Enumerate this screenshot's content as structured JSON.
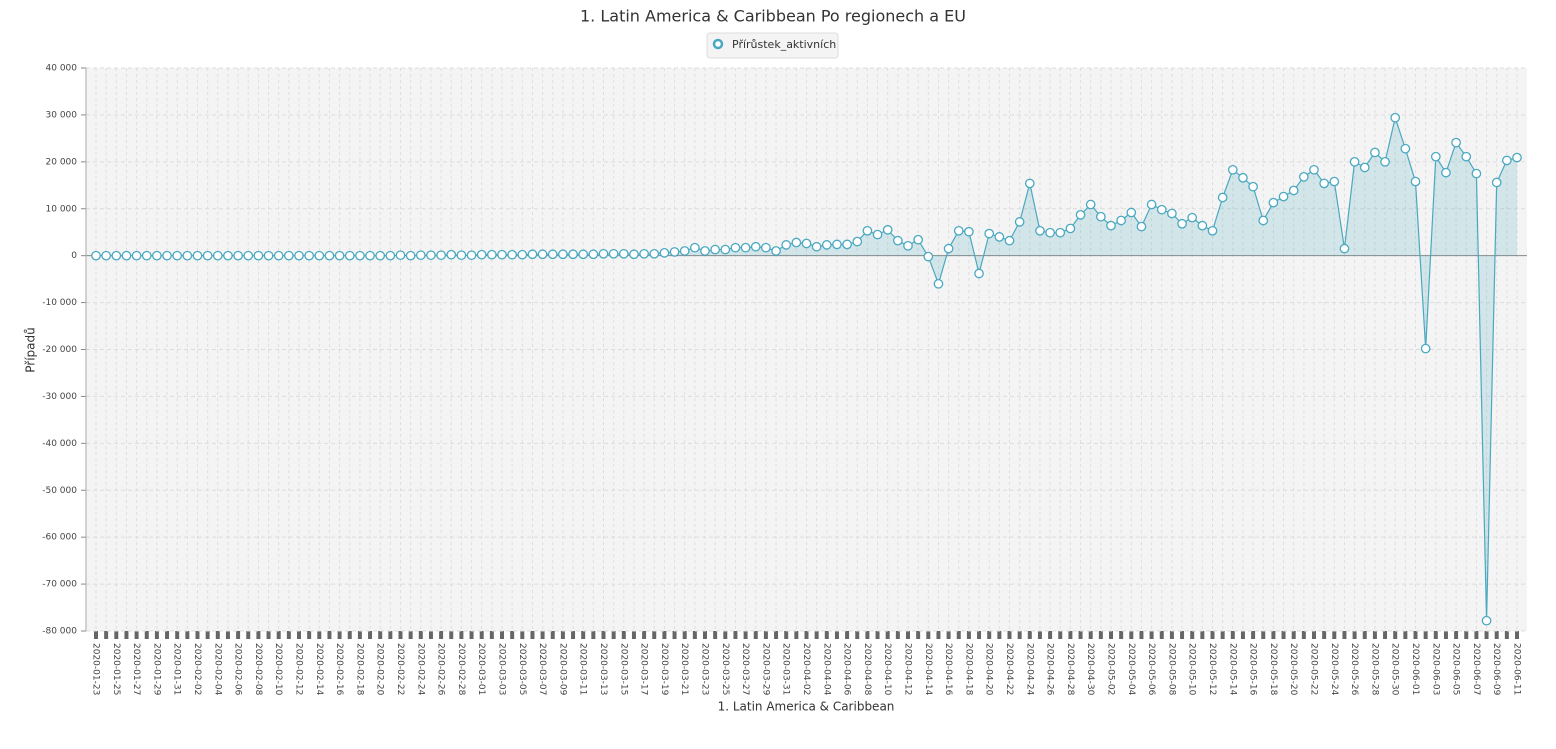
{
  "chart_data": {
    "type": "area",
    "title": "1. Latin America & Caribbean Po regionech a EU",
    "x_label": "1. Latin America & Caribbean",
    "y_label": "Případů",
    "legend": "top",
    "grid": true,
    "categories": [
      "2020-01-23",
      null,
      "2020-01-25",
      null,
      "2020-01-27",
      null,
      "2020-01-29",
      null,
      "2020-01-31",
      null,
      "2020-02-02",
      null,
      "2020-02-04",
      null,
      "2020-02-06",
      null,
      "2020-02-08",
      null,
      "2020-02-10",
      null,
      "2020-02-12",
      null,
      "2020-02-14",
      null,
      "2020-02-16",
      null,
      "2020-02-18",
      null,
      "2020-02-20",
      null,
      "2020-02-22",
      null,
      "2020-02-24",
      null,
      "2020-02-26",
      null,
      "2020-02-28",
      null,
      "2020-03-01",
      null,
      "2020-03-03",
      null,
      "2020-03-05",
      null,
      "2020-03-07",
      null,
      "2020-03-09",
      null,
      "2020-03-11",
      null,
      "2020-03-13",
      null,
      "2020-03-15",
      null,
      "2020-03-17",
      null,
      "2020-03-19",
      null,
      "2020-03-21",
      null,
      "2020-03-23",
      null,
      "2020-03-25",
      null,
      "2020-03-27",
      null,
      "2020-03-29",
      null,
      "2020-03-31",
      null,
      "2020-04-02",
      null,
      "2020-04-04",
      null,
      "2020-04-06",
      null,
      "2020-04-08",
      null,
      "2020-04-10",
      null,
      "2020-04-12",
      null,
      "2020-04-14",
      null,
      "2020-04-16",
      null,
      "2020-04-18",
      null,
      "2020-04-20",
      null,
      "2020-04-22",
      null,
      "2020-04-24",
      null,
      "2020-04-26",
      null,
      "2020-04-28",
      null,
      "2020-04-30",
      null,
      "2020-05-02",
      null,
      "2020-05-04",
      null,
      "2020-05-06",
      null,
      "2020-05-08",
      null,
      "2020-05-10",
      null,
      "2020-05-12",
      null,
      "2020-05-14",
      null,
      "2020-05-16",
      null,
      "2020-05-18",
      null,
      "2020-05-20",
      null,
      "2020-05-22",
      null,
      "2020-05-24",
      null,
      "2020-05-26",
      null,
      "2020-05-28",
      null,
      "2020-05-30",
      null,
      "2020-06-01",
      null,
      "2020-06-03",
      null,
      "2020-06-05",
      null,
      "2020-06-07",
      null,
      "2020-06-09",
      null,
      "2020-06-11"
    ],
    "series": [
      {
        "name": "Přírůstek_aktivních",
        "color": "#4aa8c0",
        "values": [
          0,
          0,
          0,
          0,
          0,
          0,
          0,
          0,
          0,
          0,
          0,
          0,
          0,
          0,
          0,
          0,
          0,
          0,
          0,
          0,
          0,
          0,
          0,
          0,
          0,
          0,
          0,
          0,
          0,
          0,
          100,
          0,
          100,
          100,
          100,
          200,
          100,
          100,
          200,
          200,
          200,
          200,
          200,
          300,
          300,
          300,
          300,
          300,
          300,
          300,
          400,
          400,
          400,
          300,
          400,
          400,
          600,
          800,
          1000,
          1700,
          1000,
          1300,
          1300,
          1700,
          1700,
          1900,
          1700,
          1000,
          2300,
          2800,
          2600,
          1900,
          2300,
          2400,
          2400,
          3000,
          5300,
          4500,
          5500,
          3200,
          2100,
          3400,
          -200,
          -6000,
          1500,
          5300,
          5100,
          -3800,
          4700,
          4000,
          3200,
          7200,
          15400,
          5300,
          4900,
          4900,
          5800,
          8700,
          10900,
          8300,
          6400,
          7500,
          9200,
          6200,
          10900,
          9800,
          9000,
          6800,
          8100,
          6400,
          5300,
          12400,
          18300,
          16600,
          14700,
          7500,
          11300,
          12600,
          13900,
          16800,
          18300,
          15400,
          15800,
          1500,
          20000,
          18800,
          22000,
          20000,
          29400,
          22800,
          15800,
          -19800,
          21100,
          17700,
          24100,
          21100,
          17500,
          -77800,
          15600,
          20300,
          20900
        ]
      }
    ],
    "ylim": [
      -80000,
      40000
    ],
    "yticks": [
      {
        "value": -80000,
        "label": "-80 000"
      },
      {
        "value": -70000,
        "label": "-70 000"
      },
      {
        "value": -60000,
        "label": "-60 000"
      },
      {
        "value": -50000,
        "label": "-50 000"
      },
      {
        "value": -40000,
        "label": "-40 000"
      },
      {
        "value": -30000,
        "label": "-30 000"
      },
      {
        "value": -20000,
        "label": "-20 000"
      },
      {
        "value": -10000,
        "label": "-10 000"
      },
      0,
      {
        "value": 10000,
        "label": "10 000"
      },
      {
        "value": 20000,
        "label": "20 000"
      },
      {
        "value": 30000,
        "label": "30 000"
      },
      {
        "value": 40000,
        "label": "40 000"
      }
    ]
  }
}
